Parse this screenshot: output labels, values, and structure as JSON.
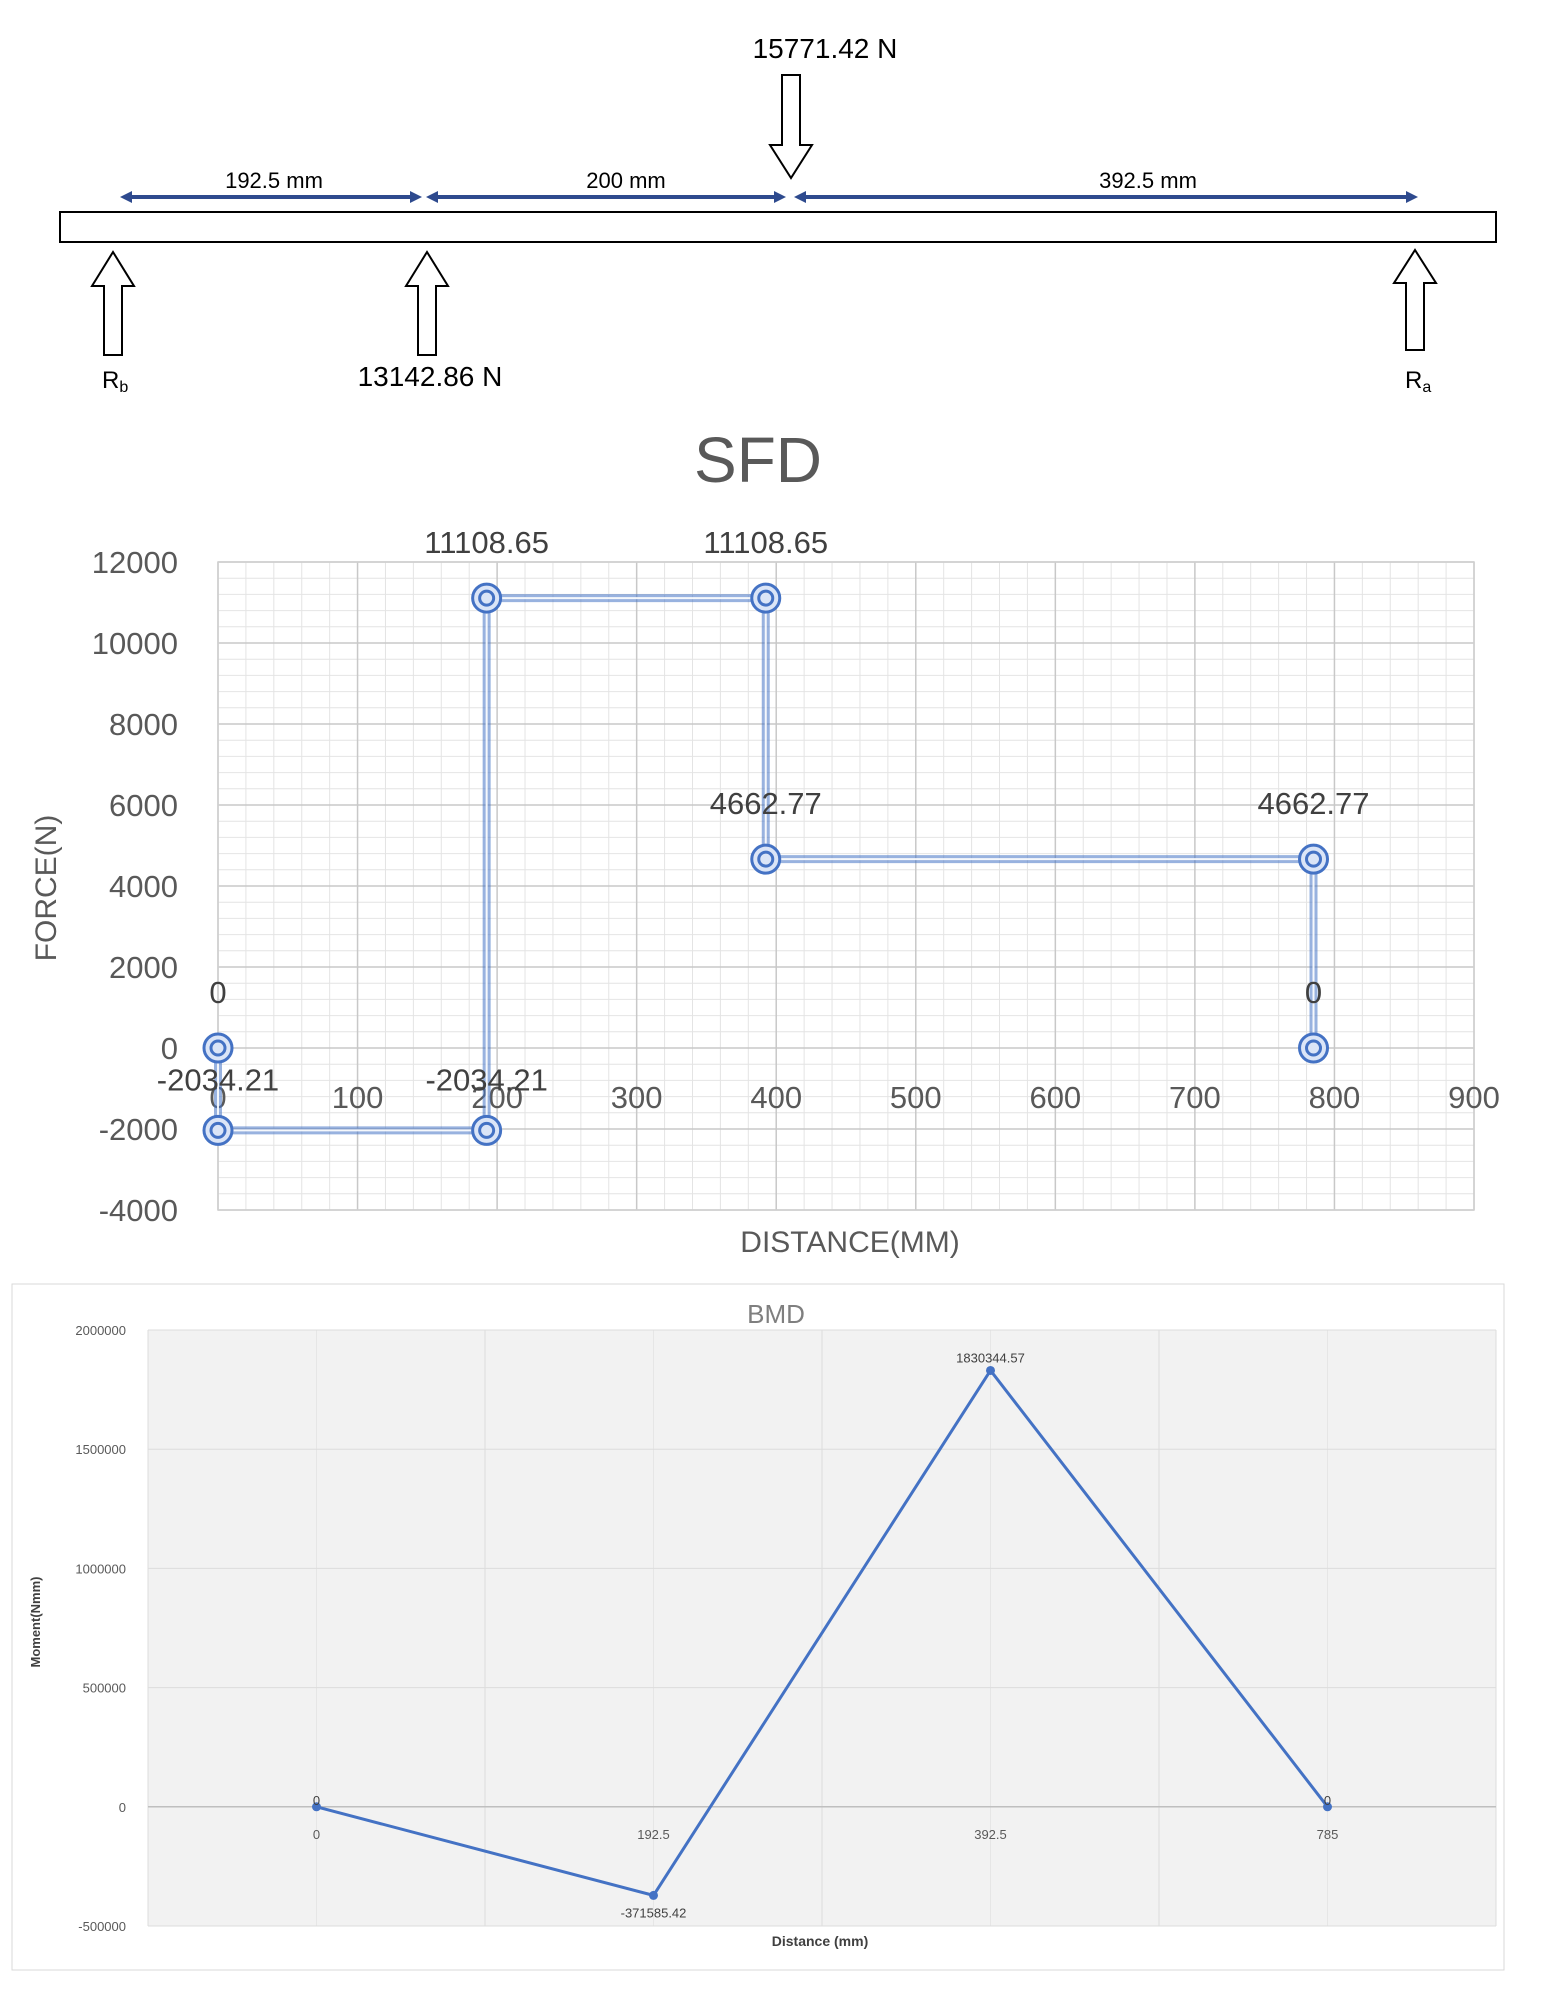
{
  "beam": {
    "load_top": "15771.42 N",
    "load_mid": "13142.86 N",
    "reaction_left": "R",
    "reaction_left_sub": "b",
    "reaction_right": "R",
    "reaction_right_sub": "a",
    "dims": [
      "192.5 mm",
      "200 mm",
      "392.5 mm"
    ]
  },
  "chart_data": [
    {
      "type": "line",
      "title": "SFD",
      "xlabel": "DISTANCE(MM)",
      "ylabel": "FORCE(N)",
      "xlim": [
        0,
        900
      ],
      "ylim": [
        -4000,
        12000
      ],
      "x_ticks": [
        "0",
        "100",
        "200",
        "300",
        "400",
        "500",
        "600",
        "700",
        "800",
        "900"
      ],
      "y_ticks": [
        "12000",
        "10000",
        "8000",
        "6000",
        "4000",
        "2000",
        "0",
        "-2000",
        "-4000"
      ],
      "grid": true,
      "series": [
        {
          "x": [
            0,
            0,
            192.5,
            192.5,
            392.5,
            392.5,
            785,
            785
          ],
          "y": [
            0,
            -2034.21,
            -2034.21,
            11108.65,
            11108.65,
            4662.77,
            4662.77,
            0
          ],
          "labels": [
            "0",
            "-2034.21",
            "-2034.21",
            "11108.65",
            "11108.65",
            "4662.77",
            "4662.77",
            "0"
          ]
        }
      ],
      "color": "#4472c4"
    },
    {
      "type": "line",
      "title": "BMD",
      "xlabel": "Distance (mm)",
      "ylabel": "Moment(Nmm)",
      "ylim": [
        -500000,
        2000000
      ],
      "y_ticks": [
        "2000000",
        "1500000",
        "1000000",
        "500000",
        "0",
        "-500000"
      ],
      "categories": [
        "0",
        "192.5",
        "392.5",
        "785"
      ],
      "values": [
        0,
        -371585.42,
        1830344.57,
        0
      ],
      "labels": [
        "0",
        "-371585.42",
        "1830344.57",
        "0"
      ],
      "grid": true,
      "color": "#4472c4"
    }
  ]
}
